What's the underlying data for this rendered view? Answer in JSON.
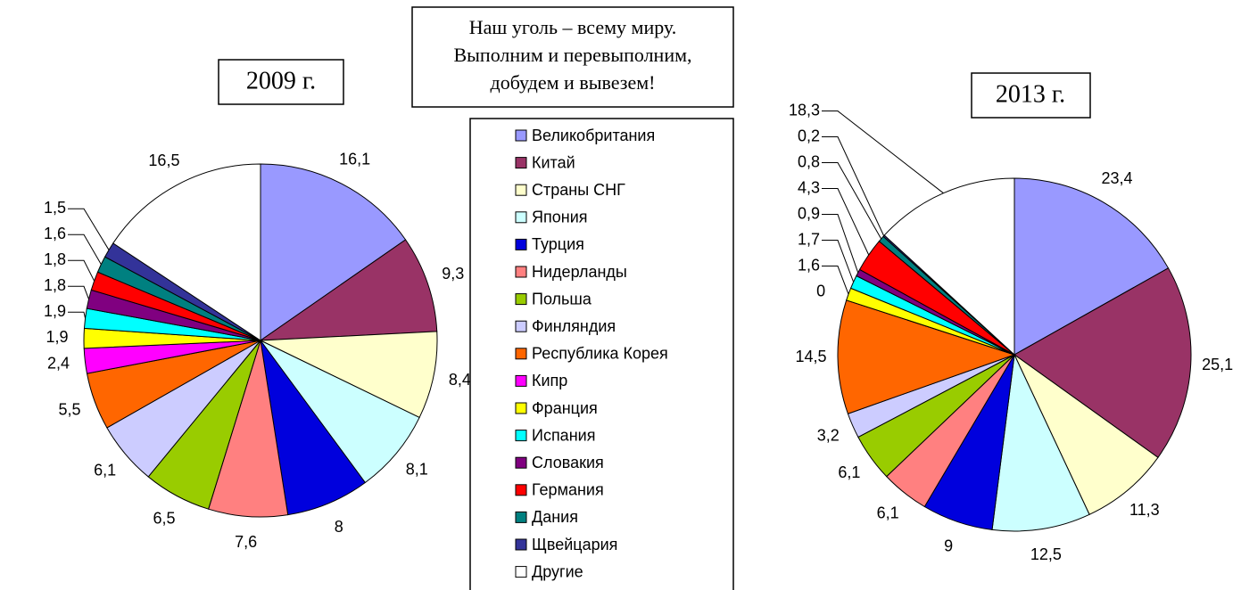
{
  "header": {
    "lines": [
      "Наш уголь – всему миру.",
      "Выполним и перевыполним,",
      "добудем и вывезем!"
    ]
  },
  "chart_data": [
    {
      "type": "pie",
      "title": "2009 г.",
      "categories": [
        "Великобритания",
        "Китай",
        "Страны СНГ",
        "Япония",
        "Турция",
        "Нидерланды",
        "Польша",
        "Финляндия",
        "Республика Корея",
        "Кипр",
        "Франция",
        "Испания",
        "Словакия",
        "Германия",
        "Дания",
        "Щвейцария",
        "Другие"
      ],
      "values": [
        16.1,
        9.3,
        8.4,
        8.1,
        8,
        7.6,
        6.5,
        6.1,
        5.5,
        2.4,
        1.9,
        1.9,
        1.8,
        1.8,
        1.6,
        1.5,
        16.5
      ],
      "value_labels": [
        "16,1",
        "9,3",
        "8,4",
        "8,1",
        "8",
        "7,6",
        "6,5",
        "6,1",
        "5,5",
        "2,4",
        "1,9",
        "1,9",
        "1,8",
        "1,8",
        "1,6",
        "1,5",
        "16,5"
      ],
      "colors": [
        "#9999ff",
        "#993366",
        "#ffffcc",
        "#ccffff",
        "#0000dd",
        "#ff8080",
        "#99cc00",
        "#ccccff",
        "#ff6600",
        "#ff00ff",
        "#ffff00",
        "#00ffff",
        "#800080",
        "#ff0000",
        "#008080",
        "#333399",
        "#ffffff"
      ],
      "legend": true
    },
    {
      "type": "pie",
      "title": "2013 г.",
      "categories": [
        "Великобритания",
        "Китай",
        "Страны СНГ",
        "Япония",
        "Турция",
        "Нидерланды",
        "Польша",
        "Финляндия",
        "Республика Корея",
        "Кипр",
        "Франция",
        "Испания",
        "Словакия",
        "Германия",
        "Дания",
        "Щвейцария",
        "Другие"
      ],
      "values": [
        23.4,
        25.1,
        11.3,
        12.5,
        9,
        6.1,
        6.1,
        3.2,
        14.5,
        0,
        1.6,
        1.7,
        0.9,
        4.3,
        0.8,
        0.2,
        18.3
      ],
      "value_labels": [
        "23,4",
        "25,1",
        "11,3",
        "12,5",
        "9",
        "6,1",
        "6,1",
        "3,2",
        "14,5",
        "0",
        "1,6",
        "1,7",
        "0,9",
        "4,3",
        "0,8",
        "0,2",
        "18,3"
      ],
      "colors": [
        "#9999ff",
        "#993366",
        "#ffffcc",
        "#ccffff",
        "#0000dd",
        "#ff8080",
        "#99cc00",
        "#ccccff",
        "#ff6600",
        "#ff00ff",
        "#ffff00",
        "#00ffff",
        "#800080",
        "#ff0000",
        "#008080",
        "#333399",
        "#ffffff"
      ],
      "legend": false
    }
  ]
}
